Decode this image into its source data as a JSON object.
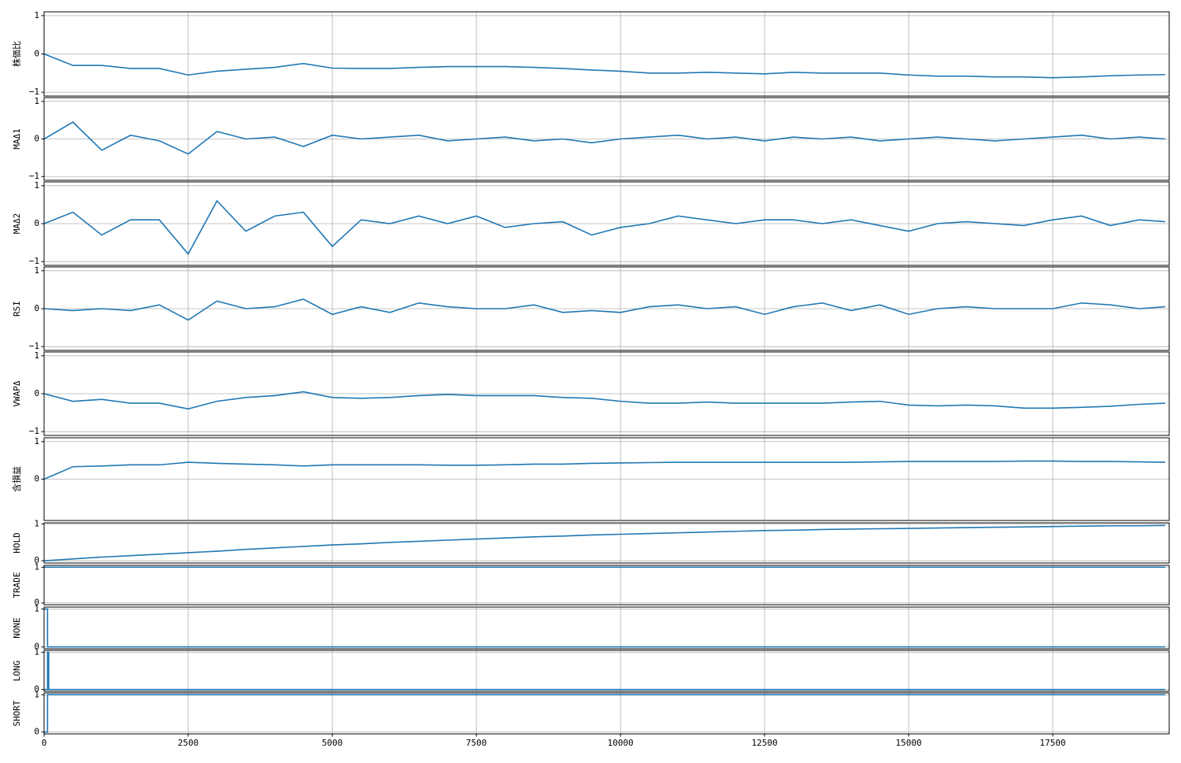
{
  "chart_data": [
    {
      "type": "line",
      "ylabel": "株価比",
      "xlim": [
        0,
        19520
      ],
      "xticks": [
        0,
        2500,
        5000,
        7500,
        10000,
        12500,
        15000,
        17500
      ],
      "ylim": [
        -1.1,
        1.1
      ],
      "yticks": [
        {
          "value": -1,
          "label": "−1"
        },
        0,
        1
      ],
      "grid": true,
      "x": [
        0,
        500,
        1000,
        1500,
        2000,
        2500,
        3000,
        3500,
        4000,
        4500,
        5000,
        5500,
        6000,
        6500,
        7000,
        7500,
        8000,
        8500,
        9000,
        9500,
        10000,
        10500,
        11000,
        11500,
        12000,
        12500,
        13000,
        13500,
        14000,
        14500,
        15000,
        15500,
        16000,
        16500,
        17000,
        17500,
        18000,
        18500,
        19000,
        19450
      ],
      "series": [
        {
          "color": "#1f77b4",
          "values": [
            0,
            -0.3,
            -0.3,
            -0.38,
            -0.38,
            -0.55,
            -0.45,
            -0.4,
            -0.35,
            -0.25,
            -0.37,
            -0.38,
            -0.38,
            -0.35,
            -0.33,
            -0.33,
            -0.33,
            -0.35,
            -0.38,
            -0.42,
            -0.45,
            -0.5,
            -0.5,
            -0.48,
            -0.5,
            -0.52,
            -0.48,
            -0.5,
            -0.5,
            -0.5,
            -0.55,
            -0.58,
            -0.58,
            -0.6,
            -0.6,
            -0.62,
            -0.6,
            -0.57,
            -0.55,
            -0.54
          ]
        }
      ]
    },
    {
      "type": "line",
      "ylabel": "MAΔ1",
      "xlim": [
        0,
        19520
      ],
      "xticks": [
        0,
        2500,
        5000,
        7500,
        10000,
        12500,
        15000,
        17500
      ],
      "ylim": [
        -1.1,
        1.1
      ],
      "yticks": [
        {
          "value": -1,
          "label": "−1"
        },
        0,
        1
      ],
      "grid": true,
      "x": [
        0,
        500,
        1000,
        1500,
        2000,
        2500,
        3000,
        3500,
        4000,
        4500,
        5000,
        5500,
        6000,
        6500,
        7000,
        7500,
        8000,
        8500,
        9000,
        9500,
        10000,
        10500,
        11000,
        11500,
        12000,
        12500,
        13000,
        13500,
        14000,
        14500,
        15000,
        15500,
        16000,
        16500,
        17000,
        17500,
        18000,
        18500,
        19000,
        19450
      ],
      "series": [
        {
          "color": "#1f77b4",
          "values": [
            0,
            0.45,
            -0.3,
            0.1,
            -0.05,
            -0.4,
            0.2,
            0,
            0.05,
            -0.2,
            0.1,
            0,
            0.05,
            0.1,
            -0.05,
            0,
            0.05,
            -0.05,
            0,
            -0.1,
            0,
            0.05,
            0.1,
            0,
            0.05,
            -0.05,
            0.05,
            0,
            0.05,
            -0.05,
            0,
            0.05,
            0,
            -0.05,
            0,
            0.05,
            0.1,
            0,
            0.05,
            0
          ]
        }
      ]
    },
    {
      "type": "line",
      "ylabel": "MAΔ2",
      "xlim": [
        0,
        19520
      ],
      "xticks": [
        0,
        2500,
        5000,
        7500,
        10000,
        12500,
        15000,
        17500
      ],
      "ylim": [
        -1.1,
        1.1
      ],
      "yticks": [
        {
          "value": -1,
          "label": "−1"
        },
        0,
        1
      ],
      "grid": true,
      "x": [
        0,
        500,
        1000,
        1500,
        2000,
        2500,
        3000,
        3500,
        4000,
        4500,
        5000,
        5500,
        6000,
        6500,
        7000,
        7500,
        8000,
        8500,
        9000,
        9500,
        10000,
        10500,
        11000,
        11500,
        12000,
        12500,
        13000,
        13500,
        14000,
        14500,
        15000,
        15500,
        16000,
        16500,
        17000,
        17500,
        18000,
        18500,
        19000,
        19450
      ],
      "series": [
        {
          "color": "#1f77b4",
          "values": [
            0,
            0.3,
            -0.3,
            0.1,
            0.1,
            -0.8,
            0.6,
            -0.2,
            0.2,
            0.3,
            -0.6,
            0.1,
            0,
            0.2,
            0,
            0.2,
            -0.1,
            0,
            0.05,
            -0.3,
            -0.1,
            0,
            0.2,
            0.1,
            0,
            0.1,
            0.1,
            0,
            0.1,
            -0.05,
            -0.2,
            0,
            0.05,
            0,
            -0.05,
            0.1,
            0.2,
            -0.05,
            0.1,
            0.05
          ]
        }
      ]
    },
    {
      "type": "line",
      "ylabel": "RSI",
      "xlim": [
        0,
        19520
      ],
      "xticks": [
        0,
        2500,
        5000,
        7500,
        10000,
        12500,
        15000,
        17500
      ],
      "ylim": [
        -1.1,
        1.1
      ],
      "yticks": [
        {
          "value": -1,
          "label": "−1"
        },
        0,
        1
      ],
      "grid": true,
      "x": [
        0,
        500,
        1000,
        1500,
        2000,
        2500,
        3000,
        3500,
        4000,
        4500,
        5000,
        5500,
        6000,
        6500,
        7000,
        7500,
        8000,
        8500,
        9000,
        9500,
        10000,
        10500,
        11000,
        11500,
        12000,
        12500,
        13000,
        13500,
        14000,
        14500,
        15000,
        15500,
        16000,
        16500,
        17000,
        17500,
        18000,
        18500,
        19000,
        19450
      ],
      "series": [
        {
          "color": "#1f77b4",
          "values": [
            0,
            -0.05,
            0,
            -0.05,
            0.1,
            -0.3,
            0.2,
            0,
            0.05,
            0.25,
            -0.15,
            0.05,
            -0.1,
            0.15,
            0.05,
            0,
            0,
            0.1,
            -0.1,
            -0.05,
            -0.1,
            0.05,
            0.1,
            0,
            0.05,
            -0.15,
            0.05,
            0.15,
            -0.05,
            0.1,
            -0.15,
            0,
            0.05,
            0,
            0,
            0,
            0.15,
            0.1,
            0,
            0.05
          ]
        }
      ]
    },
    {
      "type": "line",
      "ylabel": "VWAPΔ",
      "xlim": [
        0,
        19520
      ],
      "xticks": [
        0,
        2500,
        5000,
        7500,
        10000,
        12500,
        15000,
        17500
      ],
      "ylim": [
        -1.1,
        1.1
      ],
      "yticks": [
        {
          "value": -1,
          "label": "−1"
        },
        0,
        1
      ],
      "grid": true,
      "x": [
        0,
        500,
        1000,
        1500,
        2000,
        2500,
        3000,
        3500,
        4000,
        4500,
        5000,
        5500,
        6000,
        6500,
        7000,
        7500,
        8000,
        8500,
        9000,
        9500,
        10000,
        10500,
        11000,
        11500,
        12000,
        12500,
        13000,
        13500,
        14000,
        14500,
        15000,
        15500,
        16000,
        16500,
        17000,
        17500,
        18000,
        18500,
        19000,
        19450
      ],
      "series": [
        {
          "color": "#1f77b4",
          "values": [
            0,
            -0.2,
            -0.15,
            -0.25,
            -0.25,
            -0.4,
            -0.2,
            -0.1,
            -0.05,
            0.05,
            -0.1,
            -0.12,
            -0.1,
            -0.05,
            -0.02,
            -0.05,
            -0.05,
            -0.05,
            -0.1,
            -0.12,
            -0.2,
            -0.25,
            -0.25,
            -0.22,
            -0.25,
            -0.25,
            -0.25,
            -0.25,
            -0.22,
            -0.2,
            -0.3,
            -0.32,
            -0.3,
            -0.32,
            -0.38,
            -0.38,
            -0.36,
            -0.33,
            -0.28,
            -0.25
          ]
        }
      ]
    },
    {
      "type": "line",
      "ylabel": "含損益",
      "xlim": [
        0,
        19520
      ],
      "xticks": [
        0,
        2500,
        5000,
        7500,
        10000,
        12500,
        15000,
        17500
      ],
      "ylim": [
        -1.1,
        1.1
      ],
      "yticks": [
        0,
        1
      ],
      "grid": true,
      "x": [
        0,
        500,
        1000,
        1500,
        2000,
        2500,
        3000,
        3500,
        4000,
        4500,
        5000,
        5500,
        6000,
        6500,
        7000,
        7500,
        8000,
        8500,
        9000,
        9500,
        10000,
        10500,
        11000,
        11500,
        12000,
        12500,
        13000,
        13500,
        14000,
        14500,
        15000,
        15500,
        16000,
        16500,
        17000,
        17500,
        18000,
        18500,
        19000,
        19450
      ],
      "series": [
        {
          "color": "#1f77b4",
          "values": [
            0,
            0.33,
            0.35,
            0.38,
            0.38,
            0.45,
            0.42,
            0.4,
            0.38,
            0.35,
            0.38,
            0.38,
            0.38,
            0.38,
            0.37,
            0.37,
            0.38,
            0.4,
            0.4,
            0.42,
            0.43,
            0.44,
            0.45,
            0.45,
            0.45,
            0.45,
            0.45,
            0.45,
            0.45,
            0.46,
            0.47,
            0.47,
            0.47,
            0.47,
            0.48,
            0.48,
            0.47,
            0.47,
            0.46,
            0.45
          ]
        }
      ]
    },
    {
      "type": "line",
      "ylabel": "HOLD",
      "xlim": [
        0,
        19520
      ],
      "xticks": [
        0,
        2500,
        5000,
        7500,
        10000,
        12500,
        15000,
        17500
      ],
      "ylim": [
        -0.06,
        1.03
      ],
      "yticks": [
        0,
        1
      ],
      "grid": true,
      "x": [
        0,
        500,
        1000,
        1500,
        2000,
        2500,
        3000,
        3500,
        4000,
        4500,
        5000,
        5500,
        6000,
        6500,
        7000,
        7500,
        8000,
        8500,
        9000,
        9500,
        10000,
        10500,
        11000,
        11500,
        12000,
        12500,
        13000,
        13500,
        14000,
        14500,
        15000,
        15500,
        16000,
        16500,
        17000,
        17500,
        18000,
        18500,
        19000,
        19450
      ],
      "series": [
        {
          "color": "#1f77b4",
          "values": [
            0,
            0.05,
            0.1,
            0.14,
            0.18,
            0.22,
            0.26,
            0.31,
            0.35,
            0.39,
            0.43,
            0.46,
            0.5,
            0.53,
            0.56,
            0.59,
            0.62,
            0.65,
            0.67,
            0.7,
            0.72,
            0.74,
            0.76,
            0.78,
            0.8,
            0.82,
            0.83,
            0.85,
            0.86,
            0.87,
            0.88,
            0.89,
            0.9,
            0.91,
            0.92,
            0.93,
            0.94,
            0.95,
            0.95,
            0.96
          ]
        }
      ]
    },
    {
      "type": "line",
      "ylabel": "TRADE",
      "xlim": [
        0,
        19520
      ],
      "xticks": [
        0,
        2500,
        5000,
        7500,
        10000,
        12500,
        15000,
        17500
      ],
      "ylim": [
        -0.05,
        1.05
      ],
      "yticks": [
        0,
        1
      ],
      "grid": true,
      "x": [
        0,
        19450
      ],
      "series": [
        {
          "color": "#1f77b4",
          "values": [
            1,
            1
          ]
        }
      ]
    },
    {
      "type": "line",
      "ylabel": "NONE",
      "xlim": [
        0,
        19520
      ],
      "xticks": [
        0,
        2500,
        5000,
        7500,
        10000,
        12500,
        15000,
        17500
      ],
      "ylim": [
        -0.05,
        1.05
      ],
      "yticks": [
        0,
        1
      ],
      "grid": true,
      "x": [
        0,
        60,
        60,
        19450
      ],
      "series": [
        {
          "color": "#1f77b4",
          "values": [
            1,
            1,
            0,
            0
          ]
        }
      ]
    },
    {
      "type": "line",
      "ylabel": "LONG",
      "xlim": [
        0,
        19520
      ],
      "xticks": [
        0,
        2500,
        5000,
        7500,
        10000,
        12500,
        15000,
        17500
      ],
      "ylim": [
        -0.05,
        1.05
      ],
      "yticks": [
        0,
        1
      ],
      "grid": true,
      "x": [
        0,
        60,
        60,
        80,
        80,
        19450
      ],
      "series": [
        {
          "color": "#1f77b4",
          "values": [
            0,
            0,
            1,
            1,
            0,
            0
          ]
        }
      ]
    },
    {
      "type": "line",
      "ylabel": "SHORT",
      "xlim": [
        0,
        19520
      ],
      "xticks": [
        0,
        2500,
        5000,
        7500,
        10000,
        12500,
        15000,
        17500
      ],
      "ylim": [
        -0.05,
        1.05
      ],
      "yticks": [
        0,
        1
      ],
      "grid": true,
      "x": [
        0,
        60,
        60,
        19450
      ],
      "series": [
        {
          "color": "#1f77b4",
          "values": [
            0,
            0,
            1,
            1
          ]
        }
      ]
    }
  ]
}
